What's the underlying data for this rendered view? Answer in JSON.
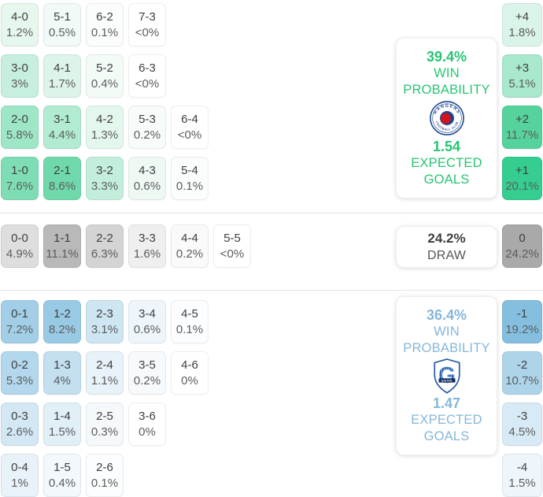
{
  "chart_data": {
    "type": "heatmap",
    "title": "Correct score probability matrix",
    "unit": "percent",
    "home_team": "Rangers",
    "away_team": "Genk",
    "home_win_probability": 39.4,
    "draw_probability": 24.2,
    "away_win_probability": 36.4,
    "home_expected_goals": 1.54,
    "away_expected_goals": 1.47,
    "correct_scores": {
      "home_win": [
        {
          "score": "4-0",
          "pct": 1.2
        },
        {
          "score": "5-1",
          "pct": 0.5
        },
        {
          "score": "6-2",
          "pct": 0.1
        },
        {
          "score": "7-3",
          "pct": 0
        },
        {
          "score": "3-0",
          "pct": 3
        },
        {
          "score": "4-1",
          "pct": 1.7
        },
        {
          "score": "5-2",
          "pct": 0.4
        },
        {
          "score": "6-3",
          "pct": 0
        },
        {
          "score": "2-0",
          "pct": 5.8
        },
        {
          "score": "3-1",
          "pct": 4.4
        },
        {
          "score": "4-2",
          "pct": 1.3
        },
        {
          "score": "5-3",
          "pct": 0.2
        },
        {
          "score": "6-4",
          "pct": 0
        },
        {
          "score": "1-0",
          "pct": 7.6
        },
        {
          "score": "2-1",
          "pct": 8.6
        },
        {
          "score": "3-2",
          "pct": 3.3
        },
        {
          "score": "4-3",
          "pct": 0.6
        },
        {
          "score": "5-4",
          "pct": 0.1
        }
      ],
      "draw": [
        {
          "score": "0-0",
          "pct": 4.9
        },
        {
          "score": "1-1",
          "pct": 11.1
        },
        {
          "score": "2-2",
          "pct": 6.3
        },
        {
          "score": "3-3",
          "pct": 1.6
        },
        {
          "score": "4-4",
          "pct": 0.2
        },
        {
          "score": "5-5",
          "pct": 0
        }
      ],
      "away_win": [
        {
          "score": "0-1",
          "pct": 7.2
        },
        {
          "score": "1-2",
          "pct": 8.2
        },
        {
          "score": "2-3",
          "pct": 3.1
        },
        {
          "score": "3-4",
          "pct": 0.6
        },
        {
          "score": "4-5",
          "pct": 0.1
        },
        {
          "score": "0-2",
          "pct": 5.3
        },
        {
          "score": "1-3",
          "pct": 4
        },
        {
          "score": "2-4",
          "pct": 1.1
        },
        {
          "score": "3-5",
          "pct": 0.2
        },
        {
          "score": "4-6",
          "pct": 0
        },
        {
          "score": "0-3",
          "pct": 2.6
        },
        {
          "score": "1-4",
          "pct": 1.5
        },
        {
          "score": "2-5",
          "pct": 0.3
        },
        {
          "score": "3-6",
          "pct": 0
        },
        {
          "score": "0-4",
          "pct": 1
        },
        {
          "score": "1-5",
          "pct": 0.4
        },
        {
          "score": "2-6",
          "pct": 0.1
        }
      ]
    },
    "goal_margins": [
      {
        "margin": "+4",
        "pct": 1.8
      },
      {
        "margin": "+3",
        "pct": 5.1
      },
      {
        "margin": "+2",
        "pct": 11.7
      },
      {
        "margin": "+1",
        "pct": 20.1
      },
      {
        "margin": "0",
        "pct": 24.2
      },
      {
        "margin": "-1",
        "pct": 19.2
      },
      {
        "margin": "-2",
        "pct": 10.7
      },
      {
        "margin": "-3",
        "pct": 4.5
      },
      {
        "margin": "-4",
        "pct": 1.5
      }
    ]
  },
  "home_section": {
    "rows": [
      [
        {
          "a": "4-0",
          "b": "1.2%",
          "bg": "#e6f7ee"
        },
        {
          "a": "5-1",
          "b": "0.5%",
          "bg": "#f1faf6"
        },
        {
          "a": "6-2",
          "b": "0.1%",
          "bg": "#fbfdfc"
        },
        {
          "a": "7-3",
          "b": "<0%",
          "bg": "#ffffff"
        }
      ],
      [
        {
          "a": "3-0",
          "b": "3%",
          "bg": "#c6efdd"
        },
        {
          "a": "4-1",
          "b": "1.7%",
          "bg": "#ddf5e9"
        },
        {
          "a": "5-2",
          "b": "0.4%",
          "bg": "#f3fbf7"
        },
        {
          "a": "6-3",
          "b": "<0%",
          "bg": "#ffffff"
        }
      ],
      [
        {
          "a": "2-0",
          "b": "5.8%",
          "bg": "#9de6c6"
        },
        {
          "a": "3-1",
          "b": "4.4%",
          "bg": "#b1ebd2"
        },
        {
          "a": "4-2",
          "b": "1.3%",
          "bg": "#e4f7ed"
        },
        {
          "a": "5-3",
          "b": "0.2%",
          "bg": "#f7fcfa"
        },
        {
          "a": "6-4",
          "b": "<0%",
          "bg": "#ffffff"
        }
      ],
      [
        {
          "a": "1-0",
          "b": "7.6%",
          "bg": "#7eddb4"
        },
        {
          "a": "2-1",
          "b": "8.6%",
          "bg": "#6fd9ab"
        },
        {
          "a": "3-2",
          "b": "3.3%",
          "bg": "#c2eedb"
        },
        {
          "a": "4-3",
          "b": "0.6%",
          "bg": "#eef9f4"
        },
        {
          "a": "5-4",
          "b": "0.1%",
          "bg": "#fbfdfc"
        }
      ]
    ],
    "margins": [
      {
        "a": "+4",
        "b": "1.8%",
        "bg": "#dbf4e9"
      },
      {
        "a": "+3",
        "b": "5.1%",
        "bg": "#a8e8cc"
      },
      {
        "a": "+2",
        "b": "11.7%",
        "bg": "#56d39c"
      },
      {
        "a": "+1",
        "b": "20.1%",
        "bg": "#35cd90"
      }
    ],
    "panel": {
      "win_pct": "39.4%",
      "win_label": "WIN PROBABILITY",
      "team": "Rangers",
      "logo_top_text": "RANGERS",
      "logo_bottom_text": "FOOTBALL CLUB",
      "xg": "1.54",
      "xg_label": "EXPECTED GOALS",
      "accent": "#27c572"
    }
  },
  "draw_section": {
    "cells": [
      {
        "a": "0-0",
        "b": "4.9%",
        "bg": "#dedede"
      },
      {
        "a": "1-1",
        "b": "11.1%",
        "bg": "#b9b9b9"
      },
      {
        "a": "2-2",
        "b": "6.3%",
        "bg": "#d4d4d4"
      },
      {
        "a": "3-3",
        "b": "1.6%",
        "bg": "#efefef"
      },
      {
        "a": "4-4",
        "b": "0.2%",
        "bg": "#fafafa"
      },
      {
        "a": "5-5",
        "b": "<0%",
        "bg": "#ffffff"
      }
    ],
    "panel": {
      "pct": "24.2%",
      "label": "DRAW"
    },
    "margin": {
      "a": "0",
      "b": "24.2%",
      "bg": "#a9a9a9"
    }
  },
  "away_section": {
    "rows": [
      [
        {
          "a": "0-1",
          "b": "7.2%",
          "bg": "#a2cee7"
        },
        {
          "a": "1-2",
          "b": "8.2%",
          "bg": "#99cae5"
        },
        {
          "a": "2-3",
          "b": "3.1%",
          "bg": "#cee5f2"
        },
        {
          "a": "3-4",
          "b": "0.6%",
          "bg": "#eef6fb"
        },
        {
          "a": "4-5",
          "b": "0.1%",
          "bg": "#fbfdfe"
        }
      ],
      [
        {
          "a": "0-2",
          "b": "5.3%",
          "bg": "#b3d7ec"
        },
        {
          "a": "1-3",
          "b": "4%",
          "bg": "#c3dff0"
        },
        {
          "a": "2-4",
          "b": "1.1%",
          "bg": "#e7f2f9"
        },
        {
          "a": "3-5",
          "b": "0.2%",
          "bg": "#f7fafd"
        },
        {
          "a": "4-6",
          "b": "0%",
          "bg": "#ffffff"
        }
      ],
      [
        {
          "a": "0-3",
          "b": "2.6%",
          "bg": "#d3e7f4"
        },
        {
          "a": "1-4",
          "b": "1.5%",
          "bg": "#e1eff7"
        },
        {
          "a": "2-5",
          "b": "0.3%",
          "bg": "#f5f9fc"
        },
        {
          "a": "3-6",
          "b": "0%",
          "bg": "#ffffff"
        }
      ],
      [
        {
          "a": "0-4",
          "b": "1%",
          "bg": "#e8f2f9"
        },
        {
          "a": "1-5",
          "b": "0.4%",
          "bg": "#f3f8fc"
        },
        {
          "a": "2-6",
          "b": "0.1%",
          "bg": "#fbfdfe"
        }
      ]
    ],
    "margins": [
      {
        "a": "-1",
        "b": "19.2%",
        "bg": "#84bfe0"
      },
      {
        "a": "-2",
        "b": "10.7%",
        "bg": "#aed4ea"
      },
      {
        "a": "-3",
        "b": "4.5%",
        "bg": "#d8eaf6"
      },
      {
        "a": "-4",
        "b": "1.5%",
        "bg": "#eef5fb"
      }
    ],
    "panel": {
      "win_pct": "36.4%",
      "win_label": "WIN PROBABILITY",
      "team": "Genk",
      "logo_text": "GENK",
      "xg": "1.47",
      "xg_label": "EXPECTED GOALS",
      "accent": "#85b7da"
    }
  }
}
